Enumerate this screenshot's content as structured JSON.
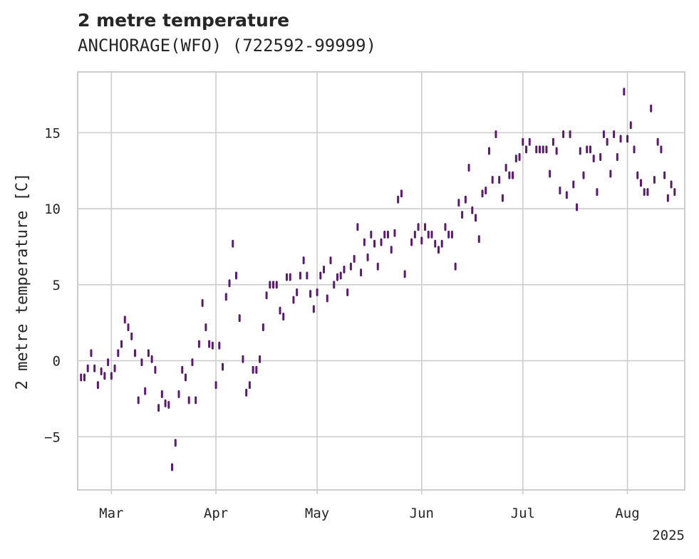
{
  "chart_data": {
    "type": "line",
    "title": "2 metre temperature",
    "subtitle": "ANCHORAGE(WFO) (722592-99999)",
    "xlabel": "",
    "ylabel": "2 metre temperature [C]",
    "x_axis": "date",
    "xlim": [
      "2025-02-19",
      "2025-08-18"
    ],
    "ylim": [
      -8.5,
      19.0
    ],
    "x_ticks": [
      {
        "date": "2025-03-01",
        "label": "Mar"
      },
      {
        "date": "2025-04-01",
        "label": "Apr"
      },
      {
        "date": "2025-05-01",
        "label": "May"
      },
      {
        "date": "2025-06-01",
        "label": "Jun"
      },
      {
        "date": "2025-07-01",
        "label": "Jul"
      },
      {
        "date": "2025-08-01",
        "label": "Aug"
      }
    ],
    "x_offset_label": "2025",
    "y_ticks": [
      -5,
      0,
      5,
      10,
      15
    ],
    "grid": true,
    "line_color": "#5b1a6e",
    "series": [
      {
        "start_date": "2025-02-20",
        "values": [
          -1.1,
          -1.1,
          -0.5,
          0.5,
          -0.5,
          -1.6,
          -0.7,
          -1.0,
          -0.1,
          -1.0,
          -0.5,
          0.5,
          1.1,
          2.7,
          2.2,
          1.6,
          0.5,
          -2.6,
          -0.1,
          -2.0,
          0.5,
          0.1,
          -0.6,
          -3.1,
          -2.2,
          -2.8,
          -2.9,
          -7.0,
          -5.4,
          -2.2,
          -0.6,
          -1.1,
          -2.6,
          -0.1,
          -2.6,
          1.1,
          3.8,
          2.2,
          1.1,
          1.0,
          -1.6,
          1.0,
          -0.4,
          4.2,
          5.1,
          7.7,
          5.6,
          2.8,
          0.1,
          -2.1,
          -1.6,
          -0.6,
          -0.6,
          0.1,
          2.2,
          4.3,
          5.0,
          5.0,
          5.0,
          3.3,
          2.9,
          5.5,
          5.5,
          4.0,
          4.5,
          5.6,
          6.6,
          5.6,
          4.4,
          3.4,
          4.5,
          5.6,
          6.0,
          4.1,
          6.6,
          5.0,
          5.5,
          5.6,
          6.0,
          4.5,
          6.2,
          6.7,
          8.8,
          5.8,
          7.8,
          6.8,
          8.3,
          7.7,
          6.2,
          7.8,
          8.3,
          8.3,
          7.3,
          8.4,
          10.6,
          11.0,
          5.7,
          null,
          7.8,
          8.3,
          8.8,
          7.9,
          8.8,
          8.3,
          8.3,
          7.7,
          7.3,
          7.7,
          8.8,
          8.3,
          8.3,
          6.2,
          10.4,
          9.6,
          10.6,
          12.7,
          9.9,
          9.4,
          8.0,
          11.0,
          11.2,
          13.8,
          11.9,
          14.9,
          11.9,
          10.7,
          12.7,
          12.2,
          12.2,
          13.3,
          13.4,
          14.4,
          13.9,
          14.4,
          null,
          13.9,
          13.9,
          13.9,
          13.9,
          12.3,
          14.4,
          13.8,
          11.2,
          14.9,
          10.9,
          14.9,
          11.6,
          10.1,
          13.8,
          12.2,
          13.9,
          13.9,
          13.3,
          11.1,
          13.4,
          14.9,
          14.4,
          12.3,
          14.9,
          13.4,
          14.6,
          17.7,
          14.6,
          15.5,
          13.9,
          12.2,
          11.7,
          11.1,
          11.1,
          16.6,
          11.9,
          14.4,
          13.9,
          12.2,
          10.7,
          11.6,
          11.1
        ]
      }
    ]
  }
}
